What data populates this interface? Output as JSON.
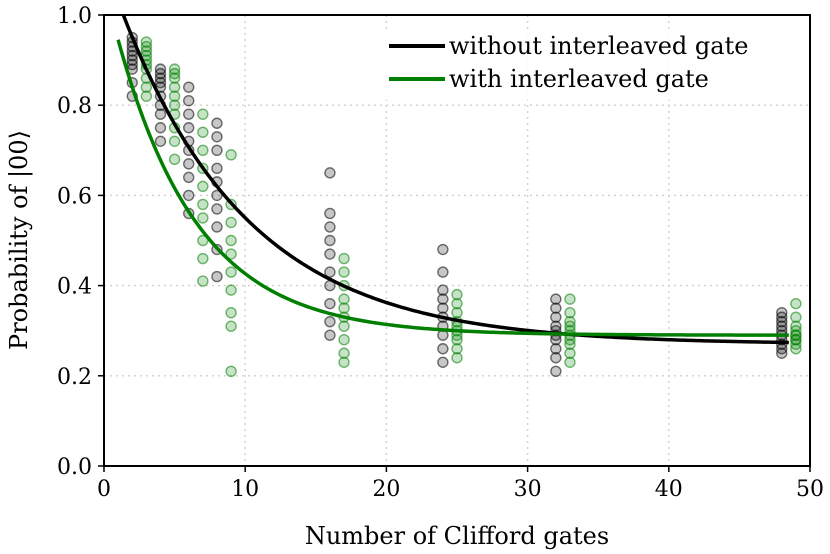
{
  "chart_data": {
    "type": "scatter",
    "xlabel": "Number of Clifford gates",
    "ylabel": "Probability of |00⟩",
    "xlim": [
      0,
      50
    ],
    "ylim": [
      0,
      1
    ],
    "xticks": [
      0,
      10,
      20,
      30,
      40,
      50
    ],
    "xtick_labels": [
      "0",
      "10",
      "20",
      "30",
      "40",
      "50"
    ],
    "yticks": [
      0.0,
      0.2,
      0.4,
      0.6,
      0.8,
      1.0
    ],
    "ytick_labels": [
      "0.0",
      "0.2",
      "0.4",
      "0.6",
      "0.8",
      "1.0"
    ],
    "grid": true,
    "legend_position": "top-right",
    "series": [
      {
        "name": "without interleaved gate",
        "color": "#000000",
        "fit": {
          "model": "A*p^m + B",
          "A": 0.85,
          "p": 0.895,
          "B": 0.27
        },
        "scatter": [
          {
            "x": 2,
            "y": [
              0.82,
              0.85,
              0.88,
              0.89,
              0.9,
              0.91,
              0.92,
              0.93,
              0.94,
              0.95
            ]
          },
          {
            "x": 4,
            "y": [
              0.72,
              0.75,
              0.78,
              0.8,
              0.82,
              0.84,
              0.85,
              0.86,
              0.87,
              0.88
            ]
          },
          {
            "x": 6,
            "y": [
              0.56,
              0.6,
              0.64,
              0.67,
              0.7,
              0.72,
              0.75,
              0.78,
              0.81,
              0.84
            ]
          },
          {
            "x": 8,
            "y": [
              0.42,
              0.48,
              0.53,
              0.57,
              0.6,
              0.63,
              0.66,
              0.7,
              0.73,
              0.76
            ]
          },
          {
            "x": 16,
            "y": [
              0.29,
              0.32,
              0.36,
              0.4,
              0.43,
              0.47,
              0.5,
              0.53,
              0.56,
              0.65
            ]
          },
          {
            "x": 24,
            "y": [
              0.23,
              0.26,
              0.29,
              0.31,
              0.33,
              0.35,
              0.37,
              0.39,
              0.43,
              0.48
            ]
          },
          {
            "x": 32,
            "y": [
              0.21,
              0.24,
              0.26,
              0.28,
              0.29,
              0.3,
              0.31,
              0.33,
              0.35,
              0.37
            ]
          },
          {
            "x": 48,
            "y": [
              0.25,
              0.26,
              0.27,
              0.28,
              0.29,
              0.3,
              0.31,
              0.32,
              0.33,
              0.34
            ]
          }
        ]
      },
      {
        "name": "with interleaved gate",
        "color": "#007f00",
        "fit": {
          "model": "A*p^m + B",
          "A": 0.78,
          "p": 0.84,
          "B": 0.29
        },
        "scatter": [
          {
            "x": 3,
            "y": [
              0.82,
              0.84,
              0.86,
              0.88,
              0.89,
              0.9,
              0.91,
              0.92,
              0.93,
              0.94
            ]
          },
          {
            "x": 5,
            "y": [
              0.68,
              0.72,
              0.75,
              0.78,
              0.8,
              0.82,
              0.84,
              0.86,
              0.87,
              0.88
            ]
          },
          {
            "x": 7,
            "y": [
              0.41,
              0.46,
              0.5,
              0.55,
              0.58,
              0.62,
              0.66,
              0.7,
              0.74,
              0.78
            ]
          },
          {
            "x": 9,
            "y": [
              0.21,
              0.31,
              0.34,
              0.39,
              0.43,
              0.47,
              0.5,
              0.54,
              0.58,
              0.69
            ]
          },
          {
            "x": 17,
            "y": [
              0.23,
              0.25,
              0.28,
              0.31,
              0.33,
              0.35,
              0.37,
              0.4,
              0.43,
              0.46
            ]
          },
          {
            "x": 25,
            "y": [
              0.24,
              0.26,
              0.28,
              0.29,
              0.3,
              0.31,
              0.32,
              0.34,
              0.36,
              0.38
            ]
          },
          {
            "x": 33,
            "y": [
              0.23,
              0.25,
              0.27,
              0.28,
              0.29,
              0.3,
              0.31,
              0.32,
              0.34,
              0.37
            ]
          },
          {
            "x": 49,
            "y": [
              0.26,
              0.27,
              0.28,
              0.28,
              0.29,
              0.29,
              0.3,
              0.31,
              0.33,
              0.36
            ]
          }
        ]
      }
    ]
  }
}
